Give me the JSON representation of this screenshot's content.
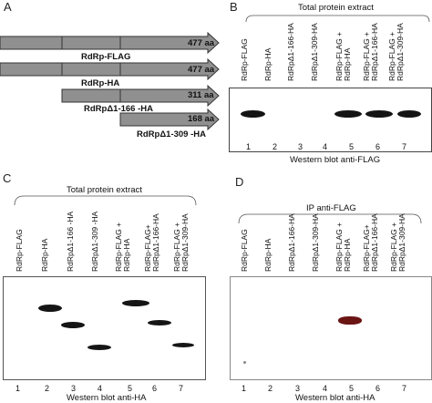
{
  "panels": {
    "A": {
      "letter": "A",
      "constructs": [
        {
          "name": "RdRp-FLAG",
          "length": "477 aa",
          "color": "#909090"
        },
        {
          "name": "RdRp-HA",
          "length": "477 aa",
          "color": "#909090"
        },
        {
          "name": "RdRpΔ1-166 -HA",
          "length": "311 aa",
          "color": "#909090"
        },
        {
          "name": "RdRpΔ1-309 -HA",
          "length": "168 aa",
          "color": "#909090"
        }
      ]
    },
    "B": {
      "letter": "B",
      "header": "Total protein extract",
      "caption": "Western blot anti-FLAG",
      "lanes": [
        "RdRp-FLAG",
        "RdRp-HA",
        "RdRpΔ1-166-HA",
        "RdRpΔ1-309-HA",
        "RdRp-FLAG +\nRdRp-HA",
        "RdRp-FLAG +\nRdRpΔ1-166-HA",
        "RdRp-FLAG +\nRdRpΔ1-309-HA"
      ],
      "numbers": [
        "1",
        "2",
        "3",
        "4",
        "5",
        "6",
        "7"
      ]
    },
    "C": {
      "letter": "C",
      "header": "Total protein extract",
      "caption": "Western blot anti-HA",
      "lanes": [
        "RdRp-FLAG",
        "RdRp-HA",
        "RdRpΔ1-166 -HA",
        "RdRpΔ1-309 -HA",
        "RdRp-FLAG +\nRdRp-HA",
        "RdRp-FLAG+\nRdRpΔ1-166-HA",
        "RdRp-FLAG +\nRdRpΔ1-309-HA"
      ],
      "numbers": [
        "1",
        "2",
        "3",
        "4",
        "5",
        "6",
        "7"
      ]
    },
    "D": {
      "letter": "D",
      "header": "IP anti-FLAG",
      "caption": "Western blot  anti-HA",
      "lanes": [
        "RdRp-FLAG",
        "RdRp-HA",
        "RdRpΔ1-166-HA",
        "RdRpΔ1-309-HA",
        "RdRp-FLAG +\nRdRp-HA",
        "RdRp-FLAG+\nRdRpΔ1-166-HA",
        "RdRp-FLAG +\nRdRpΔ1-309-HA"
      ],
      "numbers": [
        "1",
        "2",
        "3",
        "4",
        "5",
        "6",
        "7"
      ]
    }
  }
}
